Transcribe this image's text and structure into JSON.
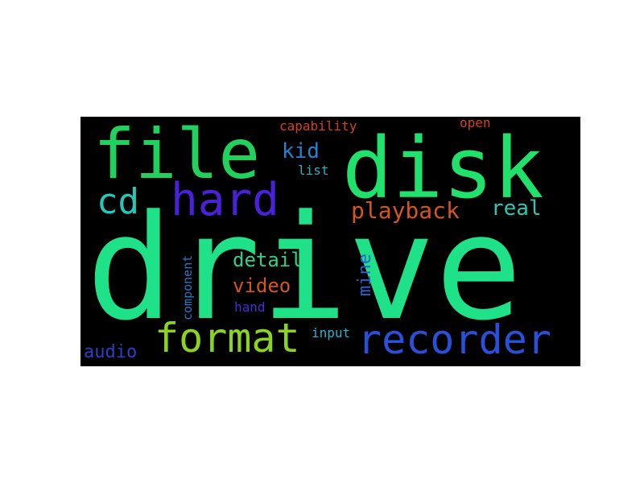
{
  "word_cloud": {
    "background": "#000000",
    "words": [
      {
        "text": "drive",
        "color": "#1fe187",
        "weight": 1.0
      },
      {
        "text": "disk",
        "color": "#1fe16c",
        "weight": 0.55
      },
      {
        "text": "file",
        "color": "#22d05d",
        "weight": 0.45
      },
      {
        "text": "hard",
        "color": "#4a20d8",
        "weight": 0.3
      },
      {
        "text": "cd",
        "color": "#25c8b8",
        "weight": 0.25
      },
      {
        "text": "recorder",
        "color": "#2950d8",
        "weight": 0.25
      },
      {
        "text": "format",
        "color": "#8ad420",
        "weight": 0.25
      },
      {
        "text": "playback",
        "color": "#d4561e",
        "weight": 0.15
      },
      {
        "text": "real",
        "color": "#2ac8b4",
        "weight": 0.13
      },
      {
        "text": "kid",
        "color": "#2a80d0",
        "weight": 0.12
      },
      {
        "text": "detail",
        "color": "#2fd08a",
        "weight": 0.12
      },
      {
        "text": "video",
        "color": "#d4561e",
        "weight": 0.12
      },
      {
        "text": "mine",
        "color": "#2a60d0",
        "weight": 0.11
      },
      {
        "text": "audio",
        "color": "#2a40c8",
        "weight": 0.11
      },
      {
        "text": "capability",
        "color": "#d4401e",
        "weight": 0.08
      },
      {
        "text": "open",
        "color": "#d44020",
        "weight": 0.07
      },
      {
        "text": "list",
        "color": "#2ab0c0",
        "weight": 0.07
      },
      {
        "text": "component",
        "color": "#2a78c8",
        "weight": 0.07
      },
      {
        "text": "hand",
        "color": "#4a2ad8",
        "weight": 0.07
      },
      {
        "text": "input",
        "color": "#2ab0d0",
        "weight": 0.07
      }
    ]
  }
}
